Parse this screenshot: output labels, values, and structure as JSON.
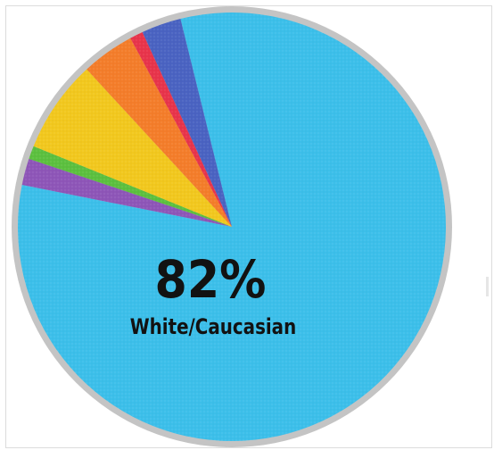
{
  "chart_data": {
    "type": "pie",
    "slices": [
      {
        "label": "White/Caucasian",
        "value": 82,
        "display": "82%",
        "color": "#3cbfea"
      },
      {
        "label": "",
        "value": 2,
        "color": "#8e56b8"
      },
      {
        "label": "",
        "value": 1,
        "color": "#5cc03f"
      },
      {
        "label": "",
        "value": 7,
        "color": "#f2c81e"
      },
      {
        "label": "",
        "value": 4,
        "color": "#f47d2a"
      },
      {
        "label": "",
        "value": 1,
        "color": "#e8344b"
      },
      {
        "label": "",
        "value": 3,
        "color": "#4a63c2"
      }
    ],
    "start_angle_deg": -13.9,
    "direction": "clockwise",
    "border_color": "#c4c4c4",
    "grid": false,
    "legend": "none"
  },
  "callout": {
    "value": "82%",
    "label": "White/Caucasian"
  }
}
